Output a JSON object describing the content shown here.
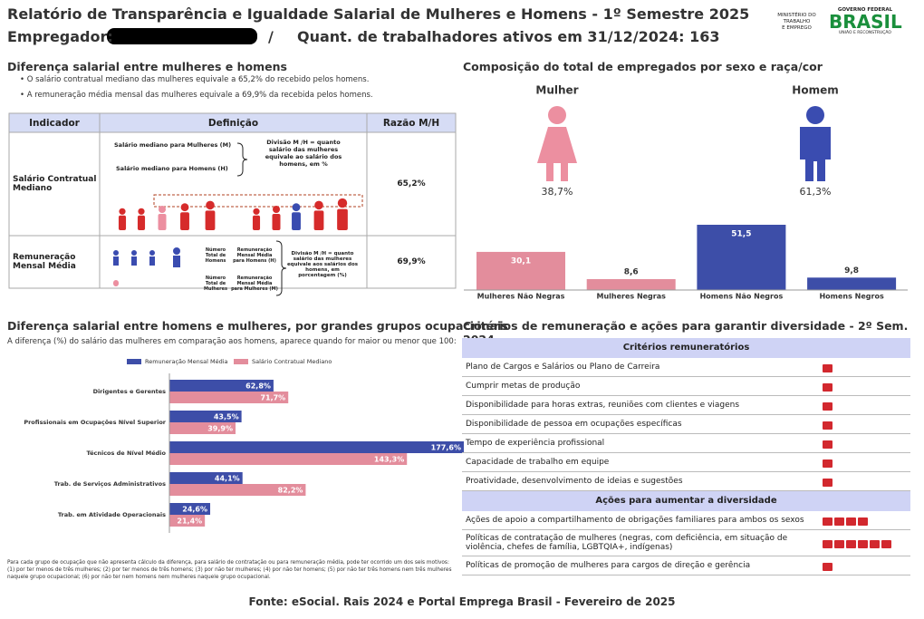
{
  "header": {
    "title": "Relatório de Transparência e Igualdade Salarial de Mulheres e Homens - 1º Semestre 2025",
    "employer_label": "Empregador:",
    "separator": "/",
    "workers": "Quant. de trabalhadores ativos em 31/12/2024: 163",
    "logo_ministry": [
      "MINISTÉRIO DO",
      "TRABALHO",
      "E EMPREGO"
    ],
    "logo_gov": "GOVERNO FEDERAL",
    "logo_brasil": "BRASIL",
    "logo_slogan": "UNIÃO E RECONSTRUÇÃO"
  },
  "pay_gap": {
    "title": "Diferença salarial entre mulheres e homens",
    "bullets": [
      "O salário contratual mediano das mulheres equivale a 65,2% do recebido pelos homens.",
      "A remuneração média mensal das mulheres equivale a 69,9% da recebida pelos homens."
    ],
    "table": {
      "headers": [
        "Indicador",
        "Definição",
        "Razão M/H"
      ],
      "rows": [
        {
          "indicator": "Salário Contratual Mediano",
          "definition": [
            "Salário mediano para Mulheres (M)",
            "Salário mediano para Homens (H)",
            "Divisão M /H = quanto salário das mulheres equivale ao salário dos homens, em %"
          ],
          "ratio": "65,2%"
        },
        {
          "indicator": "Remuneração Mensal Média",
          "definition": [
            "Número Total de Homens",
            "Remuneração Mensal Média para Homens (H)",
            "Número Total de Mulheres",
            "Remuneração Mensal Média para Mulheres (M)",
            "Divisão M /H = quanto salário das mulheres equivale aos salários dos homens, em porcentagem (%)"
          ],
          "ratio": "69,9%"
        }
      ]
    }
  },
  "composition": {
    "title": "Composição do total de empregados por sexo e raça/cor",
    "groups": [
      {
        "label": "Mulher",
        "share": "38,7%",
        "color": "#ec8fa0"
      },
      {
        "label": "Homem",
        "share": "61,3%",
        "color": "#3a4cb0"
      }
    ],
    "chart_data": {
      "type": "bar",
      "categories": [
        "Mulheres Não Negras",
        "Mulheres Negras",
        "Homens Não Negros",
        "Homens Negros"
      ],
      "values": [
        30.1,
        8.6,
        51.5,
        9.8
      ],
      "value_labels": [
        "30,1",
        "8,6",
        "51,5",
        "9,8"
      ],
      "colors": [
        "#e38d9c",
        "#e38d9c",
        "#3d4ea8",
        "#3d4ea8"
      ]
    }
  },
  "occupations": {
    "title": "Diferença salarial entre homens e mulheres, por grandes grupos ocupacionais",
    "subtitle": "A diferença (%) do salário das mulheres em comparação aos homens, aparece quando for maior ou menor que 100:",
    "chart_data": {
      "type": "barh",
      "categories": [
        "Dirigentes e Gerentes",
        "Profissionais em Ocupações Nível Superior",
        "Técnicos de Nível Médio",
        "Trab. de Serviços Administrativos",
        "Trab. em Atividade Operacionais"
      ],
      "series": [
        {
          "name": "Remuneração Mensal Média",
          "color": "#3d4ea8",
          "values": [
            62.8,
            43.5,
            177.6,
            44.1,
            24.6
          ],
          "value_labels": [
            "62,8%",
            "43,5%",
            "177,6%",
            "44,1%",
            "24,6%"
          ]
        },
        {
          "name": "Salário Contratual Mediano",
          "color": "#e38d9c",
          "values": [
            71.7,
            39.9,
            143.3,
            82.2,
            21.4
          ],
          "value_labels": [
            "71,7%",
            "39,9%",
            "143,3%",
            "82,2%",
            "21,4%"
          ]
        }
      ]
    },
    "footnote": "Para cada grupo de ocupação que não apresenta cálculo da diferença, para salário de contratação ou para remuneração média, pode ter ocorrido um dos seis motivos: (1) por ter menos de três mulheres; (2) por ter menos de três homens; (3) por não ter mulheres; (4) por não ter homens; (5) por não ter três homens nem três mulheres naquele grupo ocupacional; (6) por não ter nem homens nem mulheres naquele grupo ocupacional."
  },
  "criteria": {
    "title": "Critérios de remuneração e ações para garantir diversidade - 2º Sem. 2024",
    "sections": [
      {
        "header": "Critérios remuneratórios",
        "items": [
          "Plano de Cargos e Salários ou Plano de Carreira",
          "Cumprir metas de produção",
          "Disponibilidade para horas extras, reuniões com clientes e viagens",
          "Disponibilidade de pessoa em ocupações específicas",
          "Tempo de experiência profissional",
          "Capacidade de trabalho em equipe",
          "Proatividade, desenvolvimento de ideias e sugestões"
        ]
      },
      {
        "header": "Ações para aumentar a diversidade",
        "items": [
          "Ações de apoio a compartilhamento de obrigações familiares para ambos os sexos",
          "Políticas de contratação de mulheres (negras, com deficiência, em situação de violência, chefes de família, LGBTQIA+, indígenas)",
          "Políticas de promoção de mulheres para cargos de direção e gerência"
        ]
      }
    ]
  },
  "footer": "Fonte: eSocial. Rais 2024 e Portal Emprega Brasil - Fevereiro de 2025"
}
